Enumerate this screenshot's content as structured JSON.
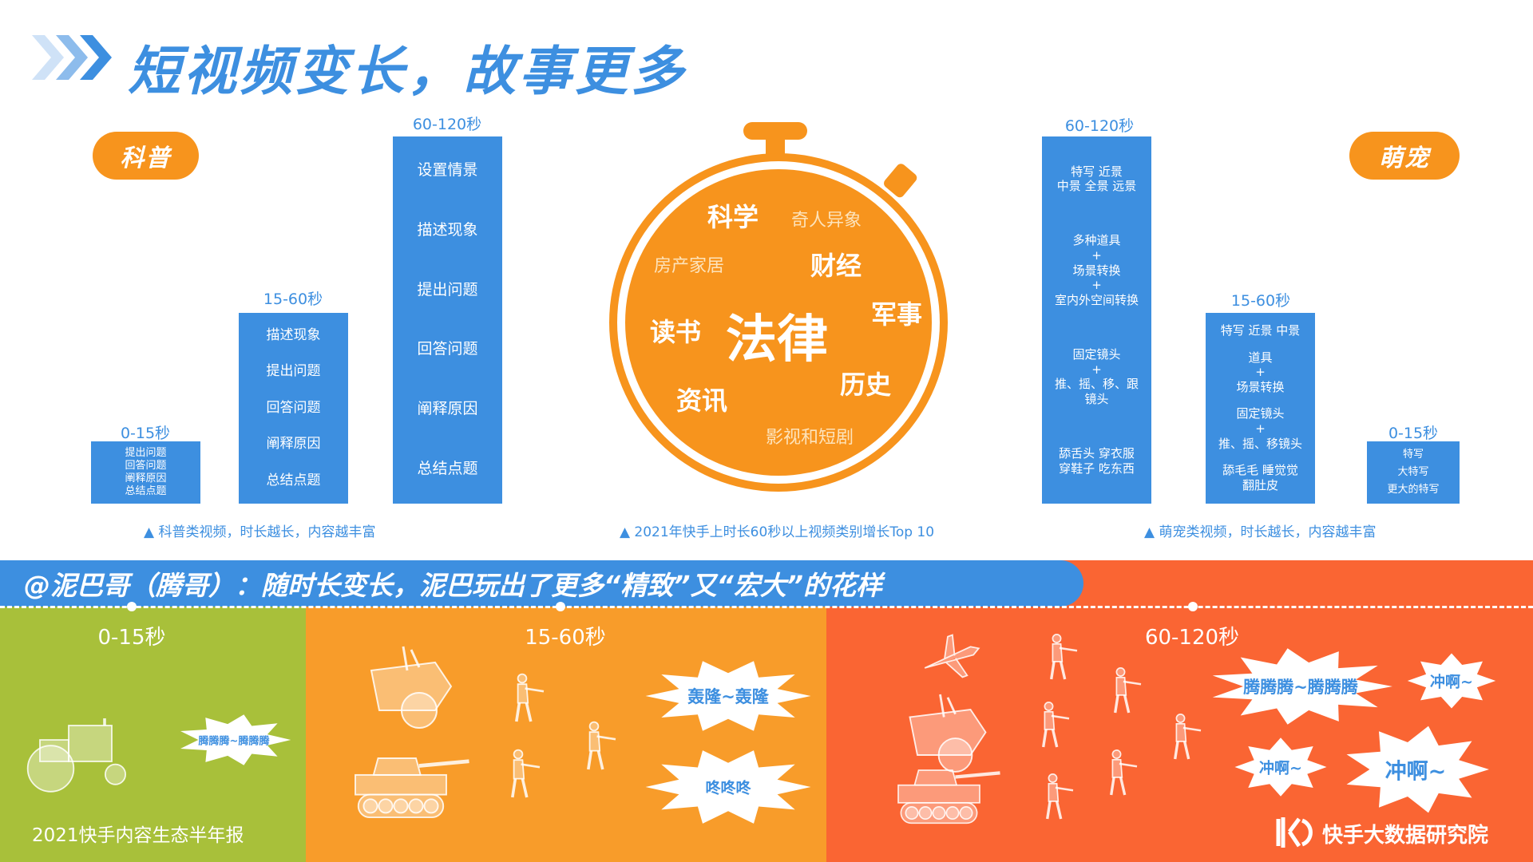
{
  "title": "短视频变长，故事更多",
  "colors": {
    "blue": "#3d8fe0",
    "orange": "#f7941d",
    "green": "#a8c03a",
    "mid_orange": "#f89c2a",
    "red_orange": "#fa6533"
  },
  "left": {
    "pill": "科普",
    "bars": [
      {
        "label": "0-15秒",
        "items": [
          "提出问题",
          "回答问题",
          "阐释原因",
          "总结点题"
        ]
      },
      {
        "label": "15-60秒",
        "items": [
          "描述现象",
          "提出问题",
          "回答问题",
          "阐释原因",
          "总结点题"
        ]
      },
      {
        "label": "60-120秒",
        "items": [
          "设置情景",
          "描述现象",
          "提出问题",
          "回答问题",
          "阐释原因",
          "总结点题"
        ]
      }
    ],
    "caption": "▲ 科普类视频，时长越长，内容越丰富"
  },
  "center": {
    "words": [
      "科学",
      "奇人异象",
      "房产家居",
      "财经",
      "读书",
      "法律",
      "军事",
      "历史",
      "资讯",
      "影视和短剧"
    ],
    "caption": "▲ 2021年快手上时长60秒以上视频类别增长Top 10"
  },
  "right": {
    "pill": "萌宠",
    "bars": [
      {
        "label": "60-120秒",
        "items": [
          "特写  近景\n中景  全景  远景",
          "多种道具\n+\n场景转换\n+\n室内外空间转换",
          "固定镜头\n+\n推、摇、移、跟\n镜头",
          "舔舌头  穿衣服\n穿鞋子  吃东西"
        ]
      },
      {
        "label": "15-60秒",
        "items": [
          "特写  近景  中景",
          "道具\n+\n场景转换",
          "固定镜头\n+\n推、摇、移镜头",
          "舔毛毛  睡觉觉\n翻肚皮"
        ]
      },
      {
        "label": "0-15秒",
        "items": [
          "特写",
          "大特写",
          "更大的特写"
        ]
      }
    ],
    "caption": "▲ 萌宠类视频，时长越长，内容越丰富"
  },
  "banner": "@泥巴哥（腾哥）：随时长变长，泥巴玩出了更多“精致”又“宏大”的花样",
  "sections": [
    {
      "label": "0-15秒",
      "bubbles": [
        "腾腾腾~腾腾腾"
      ]
    },
    {
      "label": "15-60秒",
      "bubbles": [
        "轰隆~轰隆",
        "咚咚咚"
      ]
    },
    {
      "label": "60-120秒",
      "bubbles": [
        "腾腾腾~腾腾腾",
        "冲啊~",
        "冲啊~",
        "冲啊~"
      ]
    }
  ],
  "footer": {
    "report": "2021快手内容生态半年报",
    "logo": "快手大数据研究院"
  }
}
